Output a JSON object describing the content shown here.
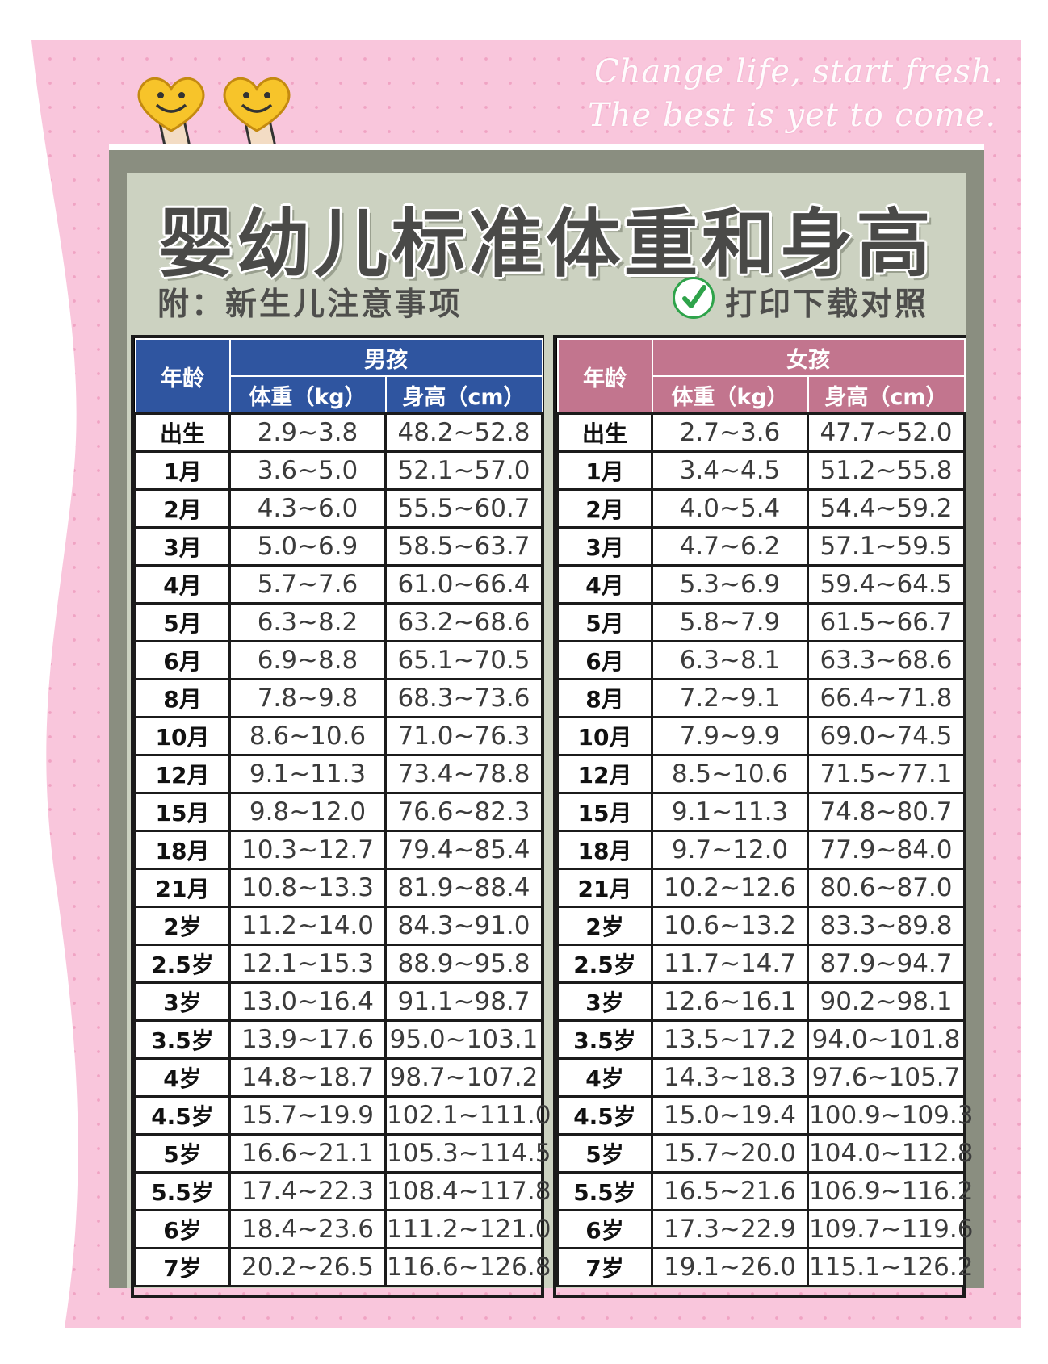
{
  "slogan": {
    "line1": "Change life, start fresh.",
    "line2": "The best is yet to come."
  },
  "title": "婴幼儿标准体重和身高",
  "subtitle_left": "附：新生儿注意事项",
  "subtitle_right": "打印下载对照",
  "colors": {
    "boys_header": "#2f55a0",
    "girls_header": "#c2758e",
    "background": "#f9c6dc",
    "check": "#2ea34a"
  },
  "icons": [
    "smiley-heart-icon",
    "smiley-heart-icon",
    "check-circle-icon"
  ],
  "boys": {
    "age_label": "年龄",
    "group_label": "男孩",
    "weight_label": "体重（kg）",
    "height_label": "身高（cm）",
    "rows": [
      [
        "出生",
        "2.9~3.8",
        "48.2~52.8"
      ],
      [
        "1月",
        "3.6~5.0",
        "52.1~57.0"
      ],
      [
        "2月",
        "4.3~6.0",
        "55.5~60.7"
      ],
      [
        "3月",
        "5.0~6.9",
        "58.5~63.7"
      ],
      [
        "4月",
        "5.7~7.6",
        "61.0~66.4"
      ],
      [
        "5月",
        "6.3~8.2",
        "63.2~68.6"
      ],
      [
        "6月",
        "6.9~8.8",
        "65.1~70.5"
      ],
      [
        "8月",
        "7.8~9.8",
        "68.3~73.6"
      ],
      [
        "10月",
        "8.6~10.6",
        "71.0~76.3"
      ],
      [
        "12月",
        "9.1~11.3",
        "73.4~78.8"
      ],
      [
        "15月",
        "9.8~12.0",
        "76.6~82.3"
      ],
      [
        "18月",
        "10.3~12.7",
        "79.4~85.4"
      ],
      [
        "21月",
        "10.8~13.3",
        "81.9~88.4"
      ],
      [
        "2岁",
        "11.2~14.0",
        "84.3~91.0"
      ],
      [
        "2.5岁",
        "12.1~15.3",
        "88.9~95.8"
      ],
      [
        "3岁",
        "13.0~16.4",
        "91.1~98.7"
      ],
      [
        "3.5岁",
        "13.9~17.6",
        "95.0~103.1"
      ],
      [
        "4岁",
        "14.8~18.7",
        "98.7~107.2"
      ],
      [
        "4.5岁",
        "15.7~19.9",
        "102.1~111.0"
      ],
      [
        "5岁",
        "16.6~21.1",
        "105.3~114.5"
      ],
      [
        "5.5岁",
        "17.4~22.3",
        "108.4~117.8"
      ],
      [
        "6岁",
        "18.4~23.6",
        "111.2~121.0"
      ],
      [
        "7岁",
        "20.2~26.5",
        "116.6~126.8"
      ]
    ]
  },
  "girls": {
    "age_label": "年龄",
    "group_label": "女孩",
    "weight_label": "体重（kg）",
    "height_label": "身高（cm）",
    "rows": [
      [
        "出生",
        "2.7~3.6",
        "47.7~52.0"
      ],
      [
        "1月",
        "3.4~4.5",
        "51.2~55.8"
      ],
      [
        "2月",
        "4.0~5.4",
        "54.4~59.2"
      ],
      [
        "3月",
        "4.7~6.2",
        "57.1~59.5"
      ],
      [
        "4月",
        "5.3~6.9",
        "59.4~64.5"
      ],
      [
        "5月",
        "5.8~7.9",
        "61.5~66.7"
      ],
      [
        "6月",
        "6.3~8.1",
        "63.3~68.6"
      ],
      [
        "8月",
        "7.2~9.1",
        "66.4~71.8"
      ],
      [
        "10月",
        "7.9~9.9",
        "69.0~74.5"
      ],
      [
        "12月",
        "8.5~10.6",
        "71.5~77.1"
      ],
      [
        "15月",
        "9.1~11.3",
        "74.8~80.7"
      ],
      [
        "18月",
        "9.7~12.0",
        "77.9~84.0"
      ],
      [
        "21月",
        "10.2~12.6",
        "80.6~87.0"
      ],
      [
        "2岁",
        "10.6~13.2",
        "83.3~89.8"
      ],
      [
        "2.5岁",
        "11.7~14.7",
        "87.9~94.7"
      ],
      [
        "3岁",
        "12.6~16.1",
        "90.2~98.1"
      ],
      [
        "3.5岁",
        "13.5~17.2",
        "94.0~101.8"
      ],
      [
        "4岁",
        "14.3~18.3",
        "97.6~105.7"
      ],
      [
        "4.5岁",
        "15.0~19.4",
        "100.9~109.3"
      ],
      [
        "5岁",
        "15.7~20.0",
        "104.0~112.8"
      ],
      [
        "5.5岁",
        "16.5~21.6",
        "106.9~116.2"
      ],
      [
        "6岁",
        "17.3~22.9",
        "109.7~119.6"
      ],
      [
        "7岁",
        "19.1~26.0",
        "115.1~126.2"
      ]
    ]
  }
}
